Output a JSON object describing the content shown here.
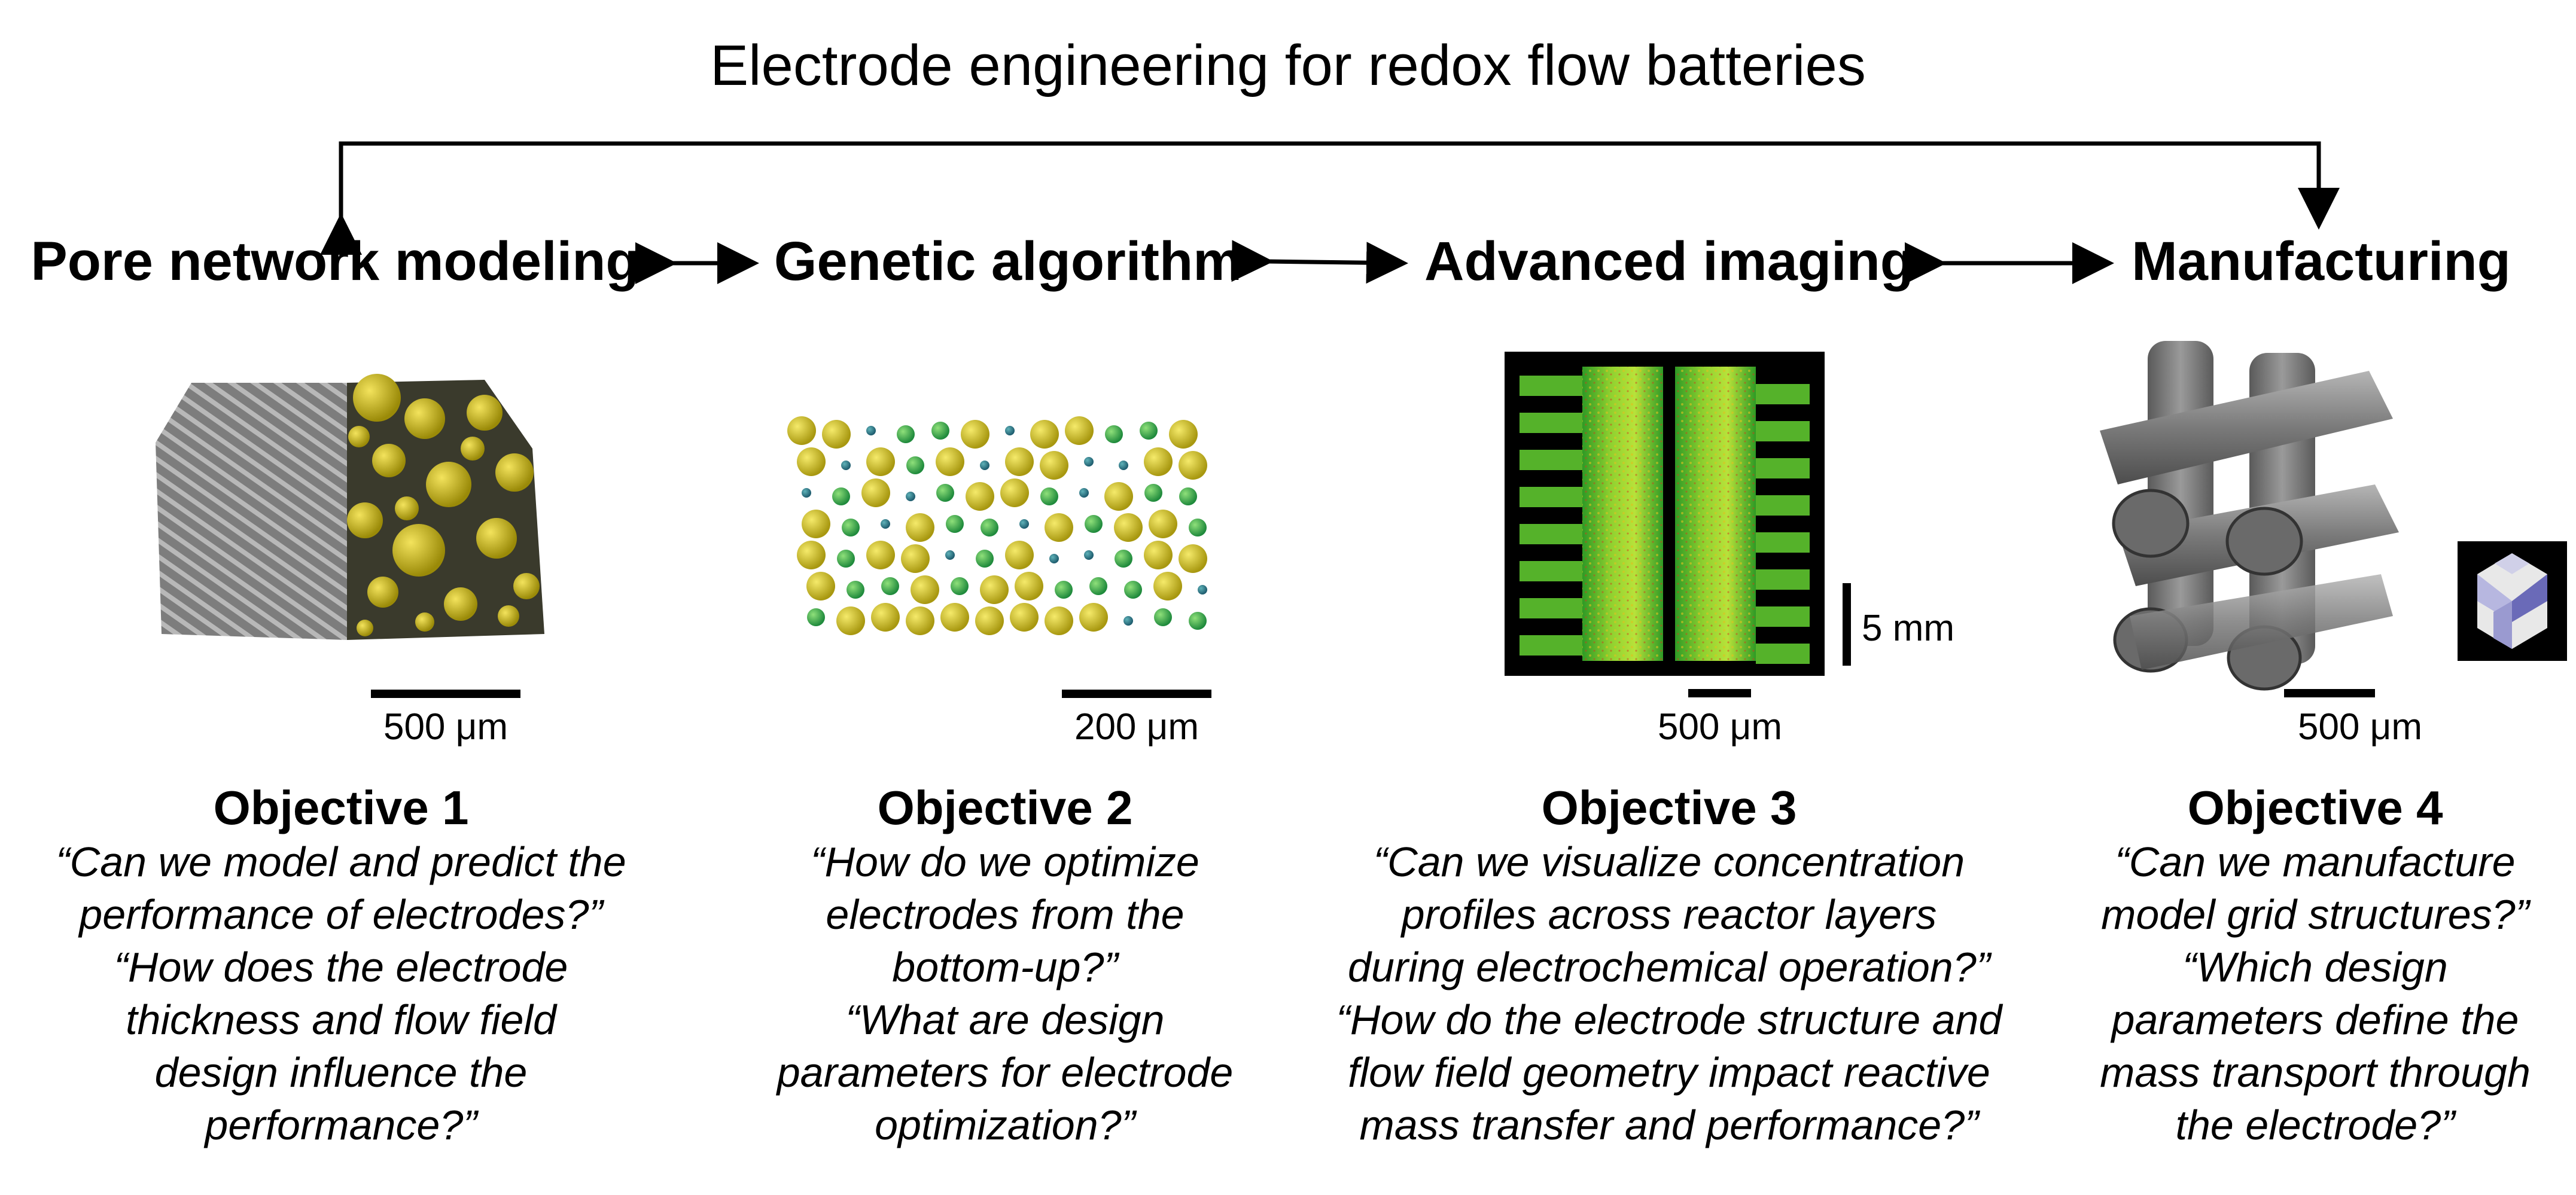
{
  "title": "Electrode engineering for redox flow batteries",
  "topics": [
    {
      "label": "Pore network modeling"
    },
    {
      "label": "Genetic algorithm"
    },
    {
      "label": "Advanced imaging"
    },
    {
      "label": "Manufacturing"
    }
  ],
  "panels": [
    {
      "scale_bar": "500 μm",
      "image": "fiber-electrode-with-pore-network-render"
    },
    {
      "scale_bar": "200 μm",
      "image": "sphere-lattice-pore-network-render"
    },
    {
      "scale_bar": "500 μm",
      "scale_bar_vertical": "5 mm",
      "image": "concentration-map-interdigitated-flow-field"
    },
    {
      "scale_bar": "500 μm",
      "image": "printed-grid-electrode-render",
      "inset": "grid-structure-unit-cell-icon"
    }
  ],
  "objectives": [
    {
      "heading": "Objective 1",
      "lines": [
        "“Can we model and predict the",
        "performance of electrodes?”",
        "“How does the electrode",
        "thickness and flow field",
        "design influence the",
        "performance?”"
      ]
    },
    {
      "heading": "Objective 2",
      "lines": [
        "“How do we optimize",
        "electrodes from the",
        "bottom-up?”",
        "“What are design",
        "parameters for electrode",
        "optimization?”"
      ]
    },
    {
      "heading": "Objective 3",
      "lines": [
        "“Can we visualize concentration",
        "profiles across reactor layers",
        "during electrochemical operation?”",
        "“How do the electrode structure and",
        "flow field geometry impact reactive",
        "mass transfer and performance?”"
      ]
    },
    {
      "heading": "Objective 4",
      "lines": [
        "“Can we manufacture",
        "model grid structures?”",
        "“Which design",
        "parameters define the",
        "mass transport through",
        "the electrode?”"
      ]
    }
  ],
  "colors": {
    "bracket": "#000000",
    "sphere_yellow": "#d4c21a",
    "sphere_green": "#3fae5a",
    "sphere_teal": "#2a7d8c",
    "fiber_gray": "#8c8c8c"
  }
}
